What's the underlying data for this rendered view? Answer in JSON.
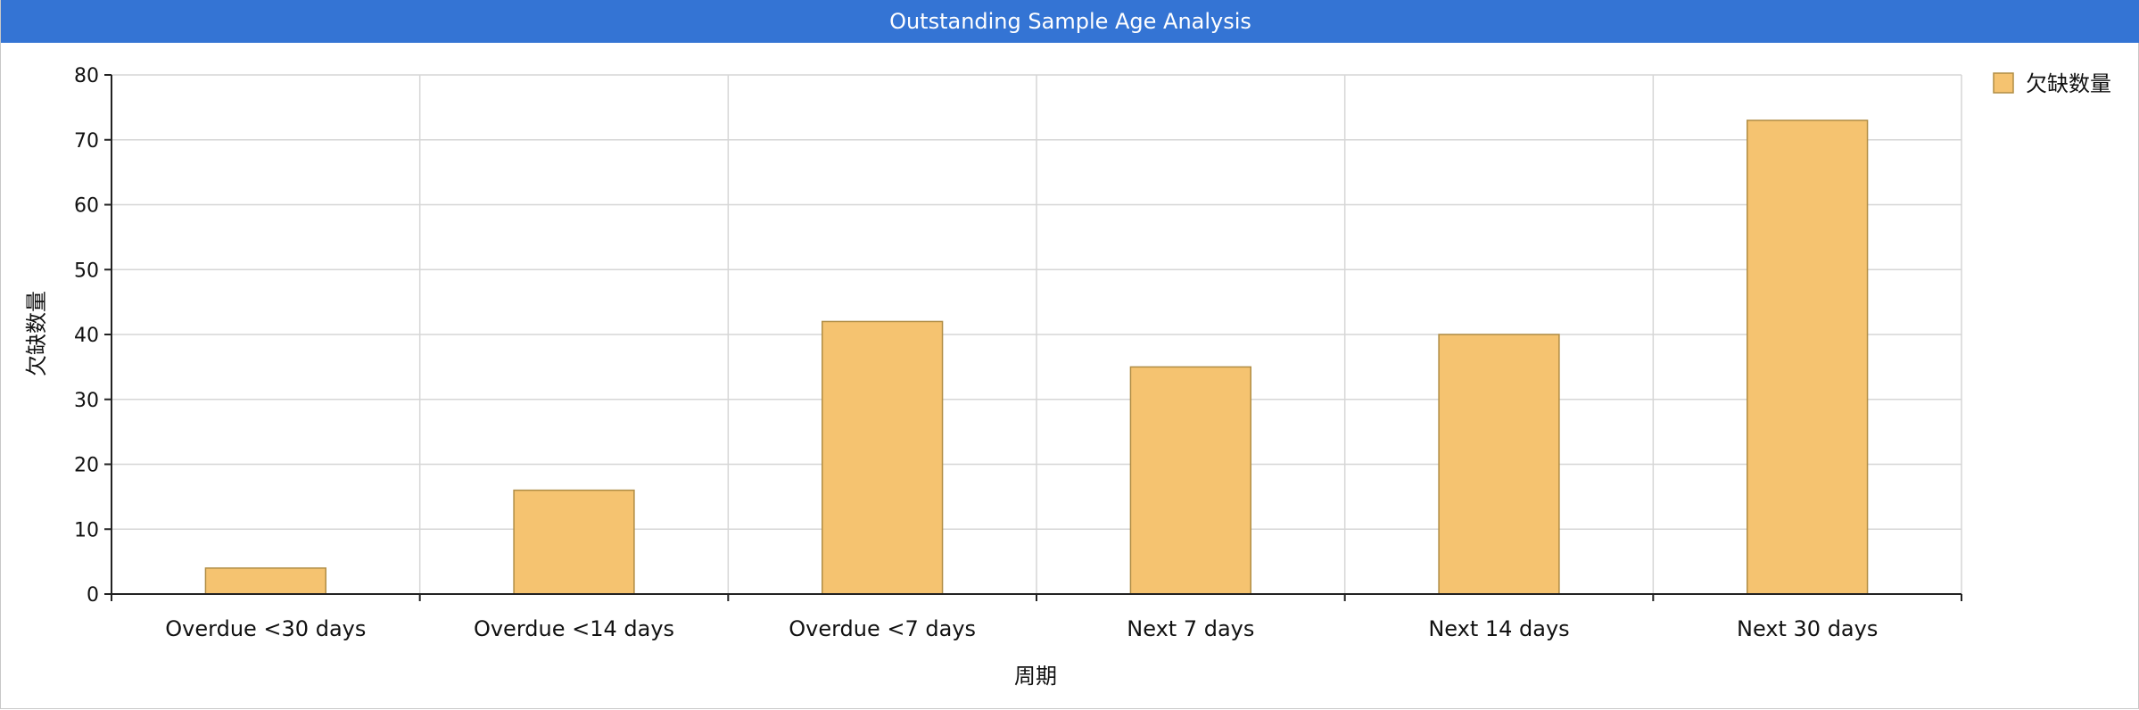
{
  "header": {
    "title": "Outstanding Sample Age Analysis"
  },
  "colors": {
    "header_bg": "#3474d4",
    "bar_fill": "#f5c370",
    "bar_stroke": "#b08d45",
    "grid": "#d6d6d6",
    "axis": "#222222"
  },
  "chart_data": {
    "type": "bar",
    "title": "Outstanding Sample Age Analysis",
    "categories": [
      "Overdue <30 days",
      "Overdue <14 days",
      "Overdue <7 days",
      "Next 7 days",
      "Next 14 days",
      "Next 30 days"
    ],
    "series": [
      {
        "name": "欠缺数量",
        "values": [
          4,
          16,
          42,
          35,
          40,
          73
        ]
      }
    ],
    "xlabel": "周期",
    "ylabel": "欠缺数量",
    "ylim": [
      0,
      80
    ],
    "yticks": [
      0,
      10,
      20,
      30,
      40,
      50,
      60,
      70,
      80
    ],
    "grid": true,
    "legend": "top-right"
  }
}
